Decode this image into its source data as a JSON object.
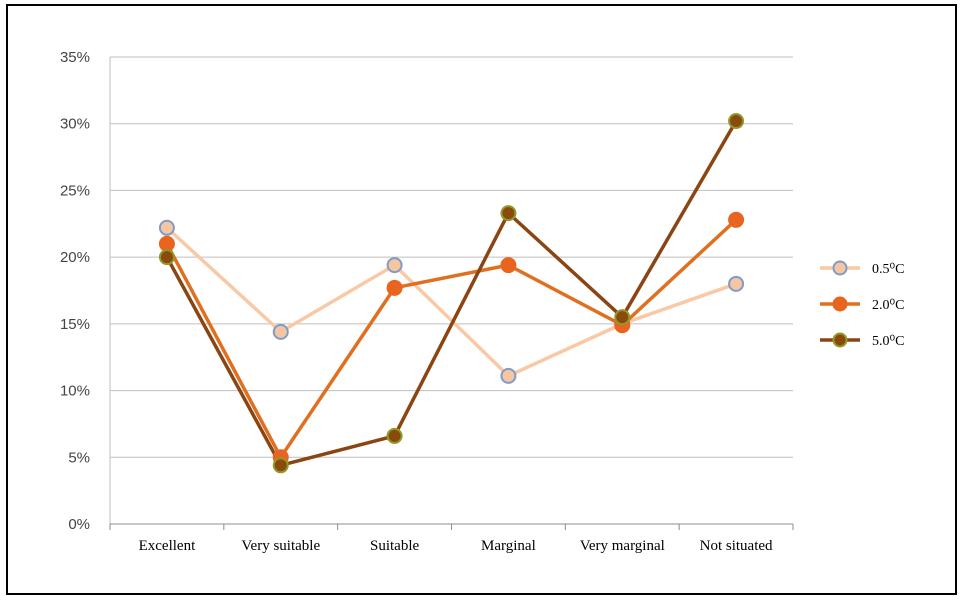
{
  "chart_data": {
    "type": "line",
    "categories": [
      "Excellent",
      "Very suitable",
      "Suitable",
      "Marginal",
      "Very marginal",
      "Not situated"
    ],
    "yticks": [
      "0%",
      "5%",
      "10%",
      "15%",
      "20%",
      "25%",
      "30%",
      "35%"
    ],
    "ylim": [
      0,
      35
    ],
    "grid": true,
    "legend_position": "right",
    "series": [
      {
        "name": "0.5⁰C",
        "values": [
          22.2,
          14.4,
          19.4,
          11.1,
          15.0,
          18.0
        ],
        "color": "#f9c9a6",
        "marker_face": "#f6c6a2",
        "marker_edge": "#7f9cc6"
      },
      {
        "name": "2.0⁰C",
        "values": [
          21.0,
          5.0,
          17.7,
          19.4,
          14.9,
          22.8
        ],
        "color": "#e07020",
        "marker_face": "#e8641f",
        "marker_edge": "#e8641f"
      },
      {
        "name": "5.0⁰C",
        "values": [
          20.0,
          4.4,
          6.6,
          23.3,
          15.5,
          30.2
        ],
        "color": "#8b4513",
        "marker_face": "#8a4a0c",
        "marker_edge": "#8f9a2a"
      }
    ]
  }
}
